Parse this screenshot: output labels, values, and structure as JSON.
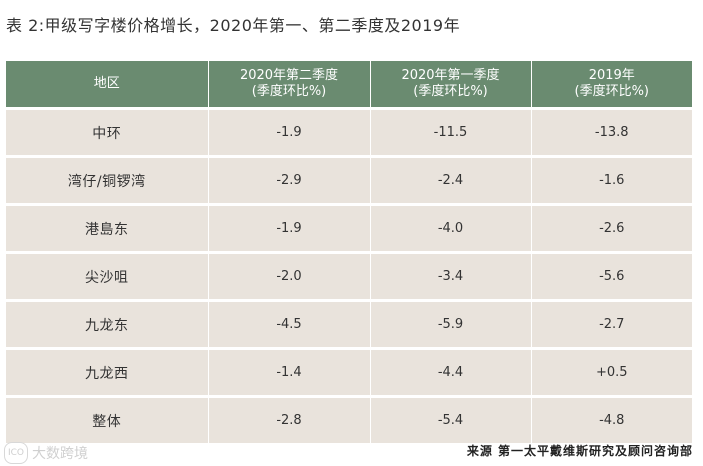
{
  "title": "表 2:甲级写字楼价格增长，2020年第一、第二季度及2019年",
  "table": {
    "headers": [
      {
        "line1": "地区",
        "line2": ""
      },
      {
        "line1": "2020年第二季度",
        "line2": "(季度环比%)"
      },
      {
        "line1": "2020年第一季度",
        "line2": "(季度环比%)"
      },
      {
        "line1": "2019年",
        "line2": "(季度环比%)"
      }
    ],
    "rows": [
      {
        "region": "中环",
        "q2_2020": "-1.9",
        "q1_2020": "-11.5",
        "y2019": "-13.8"
      },
      {
        "region": "湾仔/铜锣湾",
        "q2_2020": "-2.9",
        "q1_2020": "-2.4",
        "y2019": "-1.6"
      },
      {
        "region": "港島东",
        "q2_2020": "-1.9",
        "q1_2020": "-4.0",
        "y2019": "-2.6"
      },
      {
        "region": "尖沙咀",
        "q2_2020": "-2.0",
        "q1_2020": "-3.4",
        "y2019": "-5.6"
      },
      {
        "region": "九龙东",
        "q2_2020": "-4.5",
        "q1_2020": "-5.9",
        "y2019": "-2.7"
      },
      {
        "region": "九龙西",
        "q2_2020": "-1.4",
        "q1_2020": "-4.4",
        "y2019": "+0.5"
      },
      {
        "region": "整体",
        "q2_2020": "-2.8",
        "q1_2020": "-5.4",
        "y2019": "-4.8"
      }
    ]
  },
  "source": "来源 第一太平戴维斯研究及顾问咨询部",
  "watermark": {
    "logo": "ICO",
    "text": "大数跨境"
  }
}
